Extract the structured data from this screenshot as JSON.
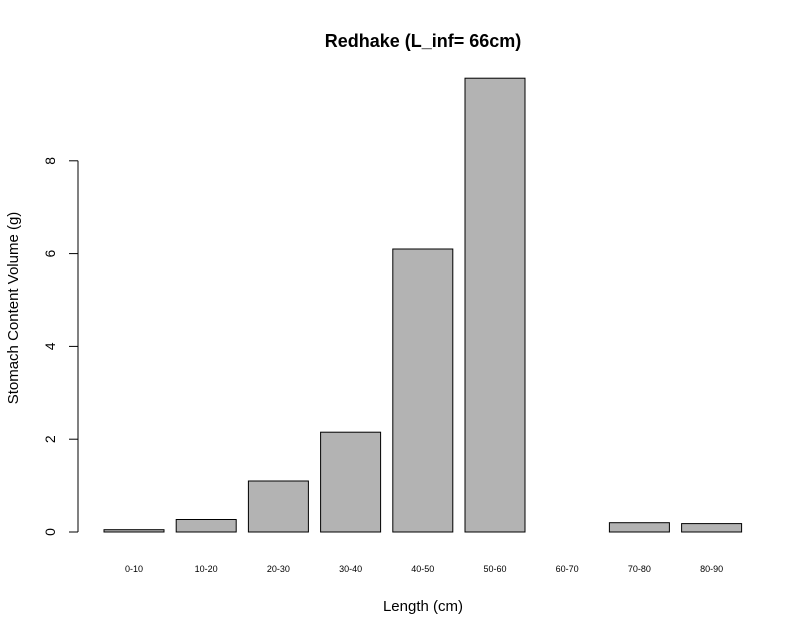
{
  "chart_data": {
    "type": "bar",
    "title": "Redhake (L_inf= 66cm)",
    "xlabel": "Length (cm)",
    "ylabel": "Stomach Content Volume (g)",
    "categories": [
      "0-10",
      "10-20",
      "20-30",
      "30-40",
      "40-50",
      "50-60",
      "60-70",
      "70-80",
      "80-90"
    ],
    "values": [
      0.05,
      0.27,
      1.1,
      2.15,
      6.1,
      9.78,
      0,
      0.2,
      0.18
    ],
    "ylim": [
      0,
      9.78
    ],
    "yticks": [
      "0",
      "2",
      "4",
      "6",
      "8"
    ],
    "grid": false,
    "colors": {
      "bar_fill": "#b3b3b3",
      "bar_stroke": "#000000"
    }
  }
}
